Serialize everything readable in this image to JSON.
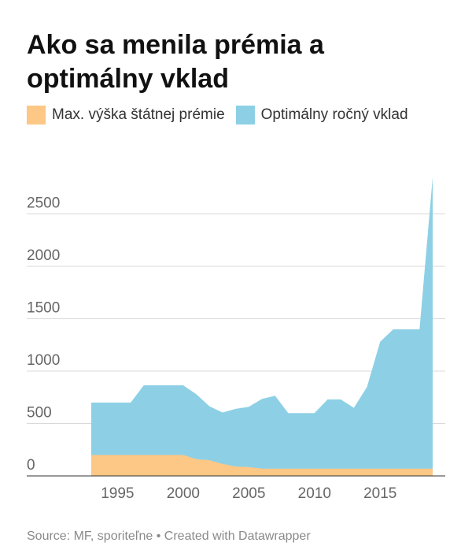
{
  "title": "Ako sa menila prémia a optimálny vklad",
  "source": "Source: MF, sporiteľne • Created with Datawrapper",
  "chart_data": {
    "type": "area",
    "title": "Ako sa menila prémia a optimálny vklad",
    "xlabel": "",
    "ylabel": "",
    "x": [
      1993,
      1994,
      1995,
      1996,
      1997,
      1998,
      1999,
      2000,
      2001,
      2002,
      2003,
      2004,
      2005,
      2006,
      2007,
      2008,
      2009,
      2010,
      2011,
      2012,
      2013,
      2014,
      2015,
      2016,
      2017,
      2018,
      2019
    ],
    "series": [
      {
        "name": "Max. výška štátnej prémie",
        "color": "#fdc785",
        "values": [
          200,
          200,
          200,
          200,
          200,
          200,
          200,
          200,
          160,
          150,
          115,
          90,
          85,
          70,
          70,
          70,
          70,
          70,
          70,
          70,
          70,
          70,
          70,
          70,
          70,
          70,
          70
        ]
      },
      {
        "name": "Optimálny ročný vklad",
        "color": "#8dd0e6",
        "values": [
          700,
          700,
          700,
          700,
          865,
          865,
          865,
          865,
          780,
          665,
          605,
          640,
          660,
          735,
          765,
          600,
          600,
          600,
          730,
          730,
          650,
          850,
          1280,
          1400,
          1400,
          1400,
          2850
        ]
      }
    ],
    "xlim": [
      1993,
      2019
    ],
    "ylim": [
      0,
      2850
    ],
    "x_ticks": [
      1995,
      2000,
      2005,
      2010,
      2015
    ],
    "y_ticks": [
      0,
      500,
      1000,
      1500,
      2000,
      2500
    ],
    "grid": true,
    "legend_position": "top-left"
  }
}
